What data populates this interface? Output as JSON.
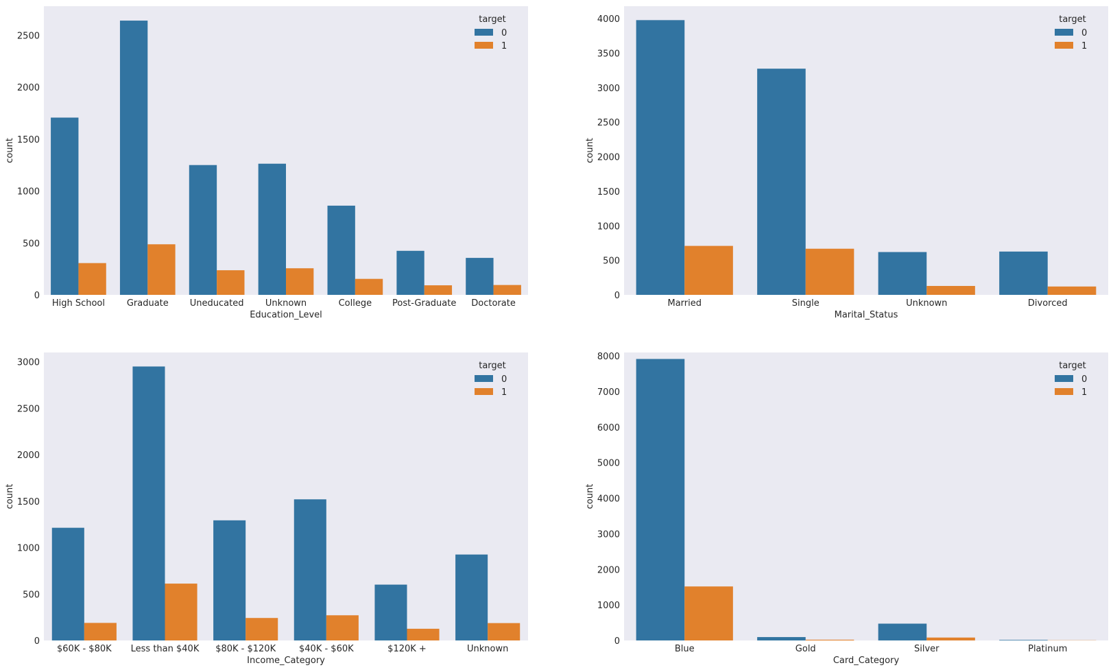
{
  "colors": {
    "series0": "#3274a1",
    "series1": "#e1812c",
    "panel_bg": "#eaeaf2"
  },
  "chart_data": [
    {
      "type": "bar",
      "xlabel": "Education_Level",
      "ylabel": "count",
      "ylim": [
        0,
        2780
      ],
      "yticks": [
        0,
        500,
        1000,
        1500,
        2000,
        2500
      ],
      "legend": {
        "title": "target",
        "placement": "top-right"
      },
      "categories": [
        "High School",
        "Graduate",
        "Uneducated",
        "Unknown",
        "College",
        "Post-Graduate",
        "Doctorate"
      ],
      "series": [
        {
          "name": "0",
          "values": [
            1707,
            2641,
            1250,
            1263,
            859,
            424,
            356
          ]
        },
        {
          "name": "1",
          "values": [
            306,
            487,
            237,
            256,
            154,
            92,
            95
          ]
        }
      ]
    },
    {
      "type": "bar",
      "xlabel": "Marital_Status",
      "ylabel": "count",
      "ylim": [
        0,
        4180
      ],
      "yticks": [
        0,
        500,
        1000,
        1500,
        2000,
        2500,
        3000,
        3500,
        4000
      ],
      "legend": {
        "title": "target",
        "placement": "top-right"
      },
      "categories": [
        "Married",
        "Single",
        "Unknown",
        "Divorced"
      ],
      "series": [
        {
          "name": "0",
          "values": [
            3978,
            3275,
            620,
            627
          ]
        },
        {
          "name": "1",
          "values": [
            709,
            668,
            129,
            121
          ]
        }
      ]
    },
    {
      "type": "bar",
      "xlabel": "Income_Category",
      "ylabel": "count",
      "ylim": [
        0,
        3100
      ],
      "yticks": [
        0,
        500,
        1000,
        1500,
        2000,
        2500,
        3000
      ],
      "legend": {
        "title": "target",
        "placement": "top-right"
      },
      "categories": [
        "$60K - $80K",
        "Less than $40K",
        "$80K - $120K",
        "$40K - $60K",
        "$120K +",
        "Unknown"
      ],
      "series": [
        {
          "name": "0",
          "values": [
            1213,
            2949,
            1293,
            1519,
            601,
            925
          ]
        },
        {
          "name": "1",
          "values": [
            189,
            612,
            242,
            271,
            126,
            187
          ]
        }
      ]
    },
    {
      "type": "bar",
      "xlabel": "Card_Category",
      "ylabel": "count",
      "ylim": [
        0,
        8100
      ],
      "yticks": [
        0,
        1000,
        2000,
        3000,
        4000,
        5000,
        6000,
        7000,
        8000
      ],
      "legend": {
        "title": "target",
        "placement": "top-right"
      },
      "categories": [
        "Blue",
        "Gold",
        "Silver",
        "Platinum"
      ],
      "series": [
        {
          "name": "0",
          "values": [
            7917,
            95,
            473,
            15
          ]
        },
        {
          "name": "1",
          "values": [
            1519,
            21,
            82,
            5
          ]
        }
      ]
    }
  ]
}
